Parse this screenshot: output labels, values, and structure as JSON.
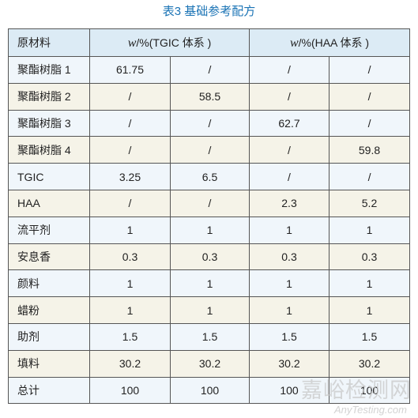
{
  "title": "表3 基础参考配方",
  "header": {
    "col0": "原材料",
    "tgic_w": "w",
    "tgic_rest": "/%(TGIC 体系 )",
    "haa_w": "w",
    "haa_rest": "/%(HAA 体系 )"
  },
  "rows": [
    {
      "name": "聚酯树脂 1",
      "cells": [
        "61.75",
        "/",
        "/",
        "/"
      ]
    },
    {
      "name": "聚酯树脂 2",
      "cells": [
        "/",
        "58.5",
        "/",
        "/"
      ]
    },
    {
      "name": "聚酯树脂 3",
      "cells": [
        "/",
        "/",
        "62.7",
        "/"
      ]
    },
    {
      "name": "聚酯树脂 4",
      "cells": [
        "/",
        "/",
        "/",
        "59.8"
      ]
    },
    {
      "name": "TGIC",
      "cells": [
        "3.25",
        "6.5",
        "/",
        "/"
      ]
    },
    {
      "name": "HAA",
      "cells": [
        "/",
        "/",
        "2.3",
        "5.2"
      ]
    },
    {
      "name": "流平剂",
      "cells": [
        "1",
        "1",
        "1",
        "1"
      ]
    },
    {
      "name": "安息香",
      "cells": [
        "0.3",
        "0.3",
        "0.3",
        "0.3"
      ]
    },
    {
      "name": "颜料",
      "cells": [
        "1",
        "1",
        "1",
        "1"
      ]
    },
    {
      "name": "蜡粉",
      "cells": [
        "1",
        "1",
        "1",
        "1"
      ]
    },
    {
      "name": "助剂",
      "cells": [
        "1.5",
        "1.5",
        "1.5",
        "1.5"
      ]
    },
    {
      "name": "填料",
      "cells": [
        "30.2",
        "30.2",
        "30.2",
        "30.2"
      ]
    },
    {
      "name": "总计",
      "cells": [
        "100",
        "100",
        "100",
        "100"
      ]
    }
  ],
  "watermark": {
    "text_cn": "嘉峪检测网",
    "text_en": "AnyTesting.com"
  }
}
